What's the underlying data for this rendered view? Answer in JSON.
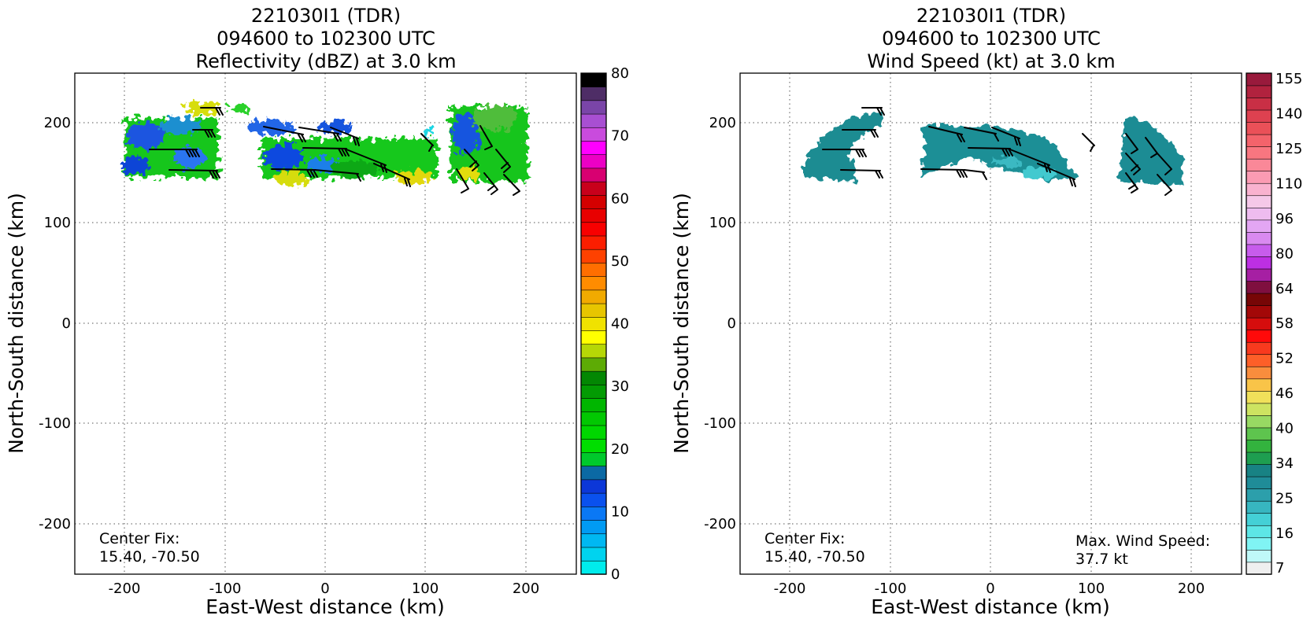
{
  "chart_data": [
    {
      "type": "heatmap",
      "title_lines": [
        "221030I1 (TDR)",
        "094600 to 102300 UTC",
        "Reflectivity (dBZ) at 3.0 km"
      ],
      "xlabel": "East-West distance (km)",
      "ylabel": "North-South distance (km)",
      "xlim": [
        -250,
        250
      ],
      "ylim": [
        -250,
        250
      ],
      "xticks": [
        -200,
        -100,
        0,
        100,
        200
      ],
      "yticks": [
        -200,
        -100,
        0,
        100,
        200
      ],
      "grid": true,
      "annotations": [
        "Center Fix:",
        "15.40, -70.50"
      ],
      "colorbar": {
        "ticks": [
          0,
          10,
          20,
          30,
          40,
          50,
          60,
          70,
          80
        ],
        "range": [
          0,
          80
        ],
        "colors": [
          "#00ecec",
          "#00d3ef",
          "#00b8f2",
          "#019bf3",
          "#0a78f5",
          "#0a51ee",
          "#0c37d8",
          "#0b69a4",
          "#00c92c",
          "#00de00",
          "#00d700",
          "#02c802",
          "#00b600",
          "#039b03",
          "#038703",
          "#5dab05",
          "#b6d706",
          "#ffff00",
          "#f0e200",
          "#e7c500",
          "#f1aa00",
          "#ff8c00",
          "#ff6e00",
          "#fe4100",
          "#fb1e00",
          "#f80000",
          "#e80000",
          "#d40000",
          "#c8001b",
          "#d80071",
          "#ec00c5",
          "#ff00ff",
          "#c94bdd",
          "#a84fd2",
          "#7a45a8",
          "#4e2d66",
          "#000000"
        ]
      },
      "field_regions": [
        {
          "x_range": [
            -200,
            -100
          ],
          "y_range": [
            140,
            210
          ],
          "values_dbz": "10-40"
        },
        {
          "x_range": [
            -70,
            110
          ],
          "y_range": [
            140,
            205
          ],
          "values_dbz": "10-40"
        },
        {
          "x_range": [
            120,
            210
          ],
          "y_range": [
            140,
            215
          ],
          "values_dbz": "10-40"
        }
      ]
    },
    {
      "type": "heatmap",
      "title_lines": [
        "221030I1 (TDR)",
        "094600 to 102300 UTC",
        "Wind Speed (kt) at 3.0 km"
      ],
      "xlabel": "East-West distance (km)",
      "ylabel": "North-South distance (km)",
      "xlim": [
        -250,
        250
      ],
      "ylim": [
        -250,
        250
      ],
      "xticks": [
        -200,
        -100,
        0,
        100,
        200
      ],
      "yticks": [
        -200,
        -100,
        0,
        100,
        200
      ],
      "grid": true,
      "annotations": [
        "Center Fix:",
        "15.40, -70.50"
      ],
      "max_wind": {
        "label": "Max. Wind Speed:",
        "value": "37.7 kt"
      },
      "colorbar": {
        "tick_labels": [
          "7",
          "16",
          "25",
          "34",
          "40",
          "46",
          "52",
          "58",
          "64",
          "80",
          "96",
          "110",
          "125",
          "140",
          "155"
        ],
        "colors": [
          "#efefef",
          "#bff8f8",
          "#80f4f4",
          "#5de6e6",
          "#44d0d6",
          "#37b6c0",
          "#2c9fab",
          "#1f8c98",
          "#188284",
          "#1e9e50",
          "#33b33e",
          "#5ec44e",
          "#98d963",
          "#cde361",
          "#f0e05a",
          "#f9c448",
          "#f98d3d",
          "#fd5f28",
          "#f83a1e",
          "#ff0a0a",
          "#d60d0d",
          "#a30808",
          "#770606",
          "#7f0f3f",
          "#a61fa3",
          "#bd2fe3",
          "#c75cec",
          "#d98af0",
          "#e3a6f3",
          "#eebcef",
          "#f5c8e8",
          "#f9b2cf",
          "#fb9bb3",
          "#fa8898",
          "#f87680",
          "#f3636b",
          "#ea5058",
          "#de4150",
          "#c92f45",
          "#b1223e",
          "#991a3c"
        ]
      },
      "field_regions": [
        {
          "x_range": [
            -190,
            -100
          ],
          "y_range": [
            140,
            210
          ],
          "values_kt": "20-30"
        },
        {
          "x_range": [
            -70,
            110
          ],
          "y_range": [
            140,
            200
          ],
          "values_kt": "20-37.7"
        },
        {
          "x_range": [
            120,
            185
          ],
          "y_range": [
            140,
            205
          ],
          "values_kt": "20-30"
        }
      ]
    }
  ]
}
